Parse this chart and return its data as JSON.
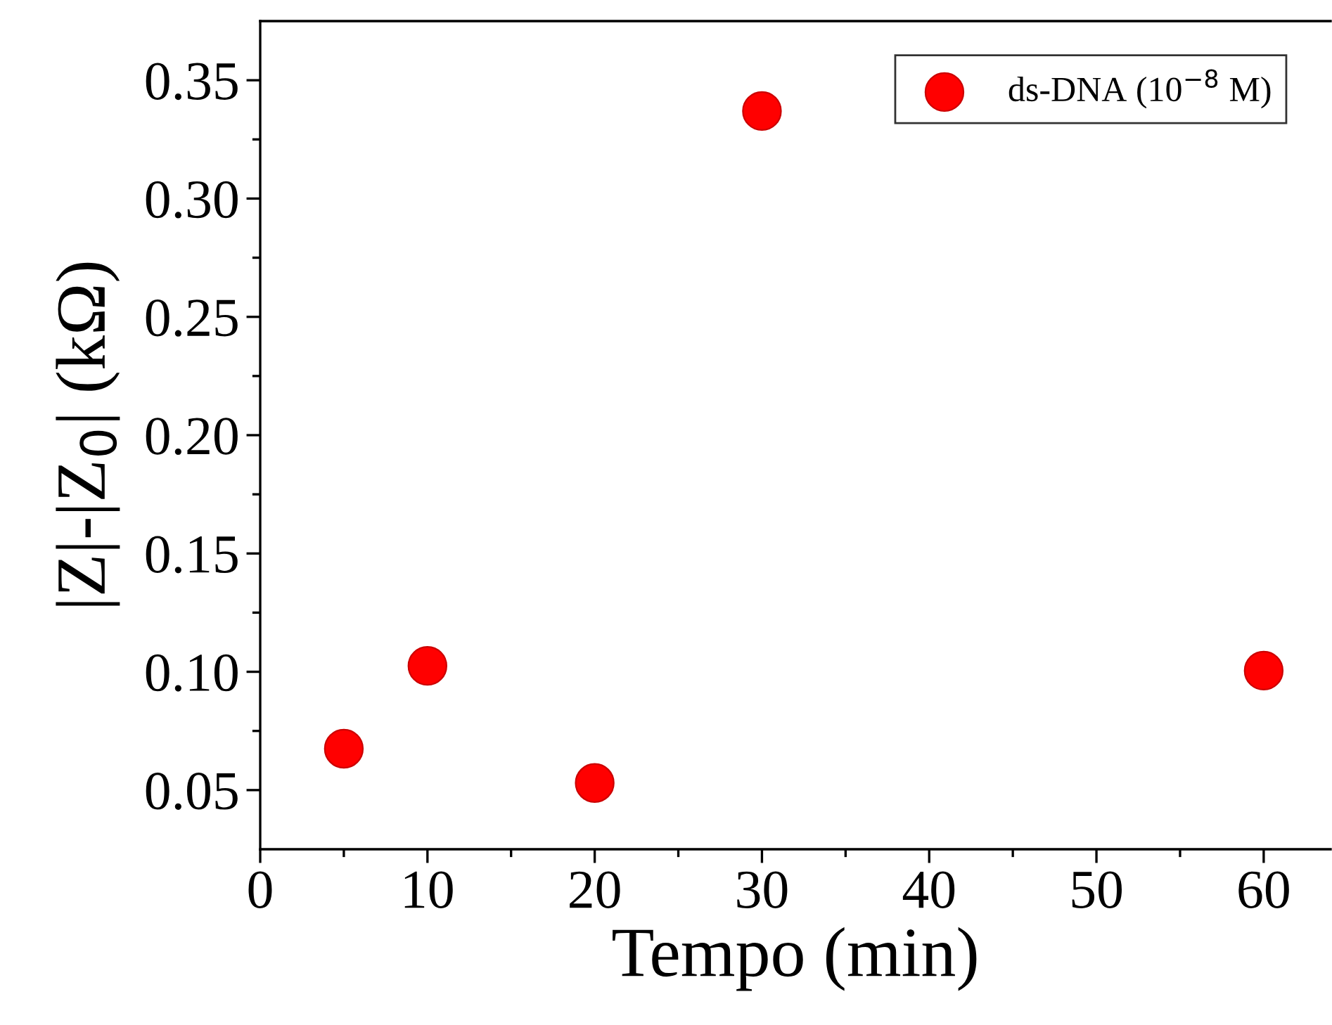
{
  "chart_data": {
    "type": "scatter",
    "xlabel": "Tempo (min)",
    "ylabel": "|Z|-|Z$_{0}$| (kΩ)",
    "x": [
      5,
      10,
      20,
      30,
      60
    ],
    "series": [
      {
        "name": "ds-DNA (10$^{−8}$ M)",
        "color": "#ff0000",
        "values": [
          0.0675,
          0.1025,
          0.053,
          0.337,
          0.1005
        ]
      }
    ],
    "xlim": [
      0,
      64
    ],
    "ylim": [
      0.025,
      0.375
    ],
    "xticks": [
      0,
      {
        "value": 5,
        "label": null
      },
      10,
      {
        "value": 15,
        "label": null
      },
      20,
      {
        "value": 25,
        "label": null
      },
      30,
      {
        "value": 35,
        "label": null
      },
      40,
      {
        "value": 45,
        "label": null
      },
      50,
      {
        "value": 55,
        "label": null
      },
      60
    ],
    "yticks": [
      0.05,
      {
        "value": 0.075,
        "label": null
      },
      {
        "value": 0.1,
        "label": "0.10"
      },
      {
        "value": 0.125,
        "label": null
      },
      0.15,
      {
        "value": 0.175,
        "label": null
      },
      {
        "value": 0.2,
        "label": "0.20"
      },
      {
        "value": 0.225,
        "label": null
      },
      0.25,
      {
        "value": 0.275,
        "label": null
      },
      {
        "value": 0.3,
        "label": "0.30"
      },
      {
        "value": 0.325,
        "label": null
      },
      0.35
    ],
    "marker": "circle",
    "legend": "top right",
    "grid": false
  }
}
